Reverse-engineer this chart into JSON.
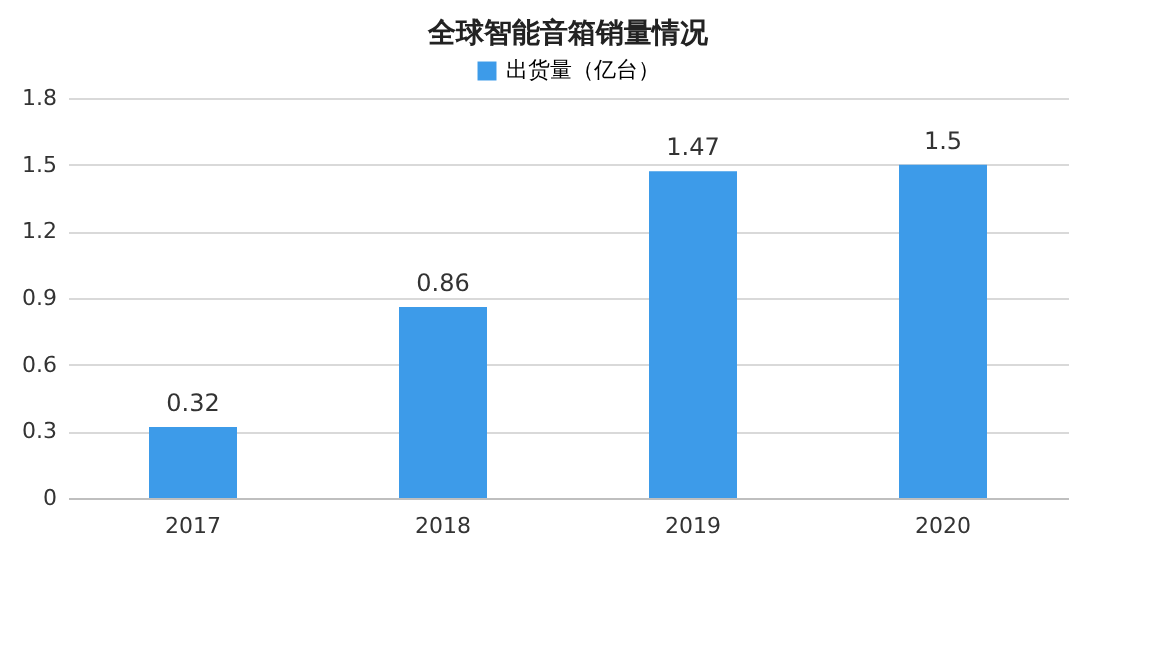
{
  "chart_data": {
    "type": "bar",
    "title": "全球智能音箱销量情况",
    "categories": [
      "2017",
      "2018",
      "2019",
      "2020"
    ],
    "series": [
      {
        "name": "出货量（亿台）",
        "color": "#3d9be9",
        "values": [
          0.32,
          0.86,
          1.47,
          1.5
        ]
      }
    ],
    "ylim": [
      0,
      1.8
    ],
    "yticks": [
      0,
      0.3,
      0.6,
      0.9,
      1.2,
      1.5,
      1.8
    ],
    "grid": "y",
    "legend": "top",
    "data_labels": true
  }
}
